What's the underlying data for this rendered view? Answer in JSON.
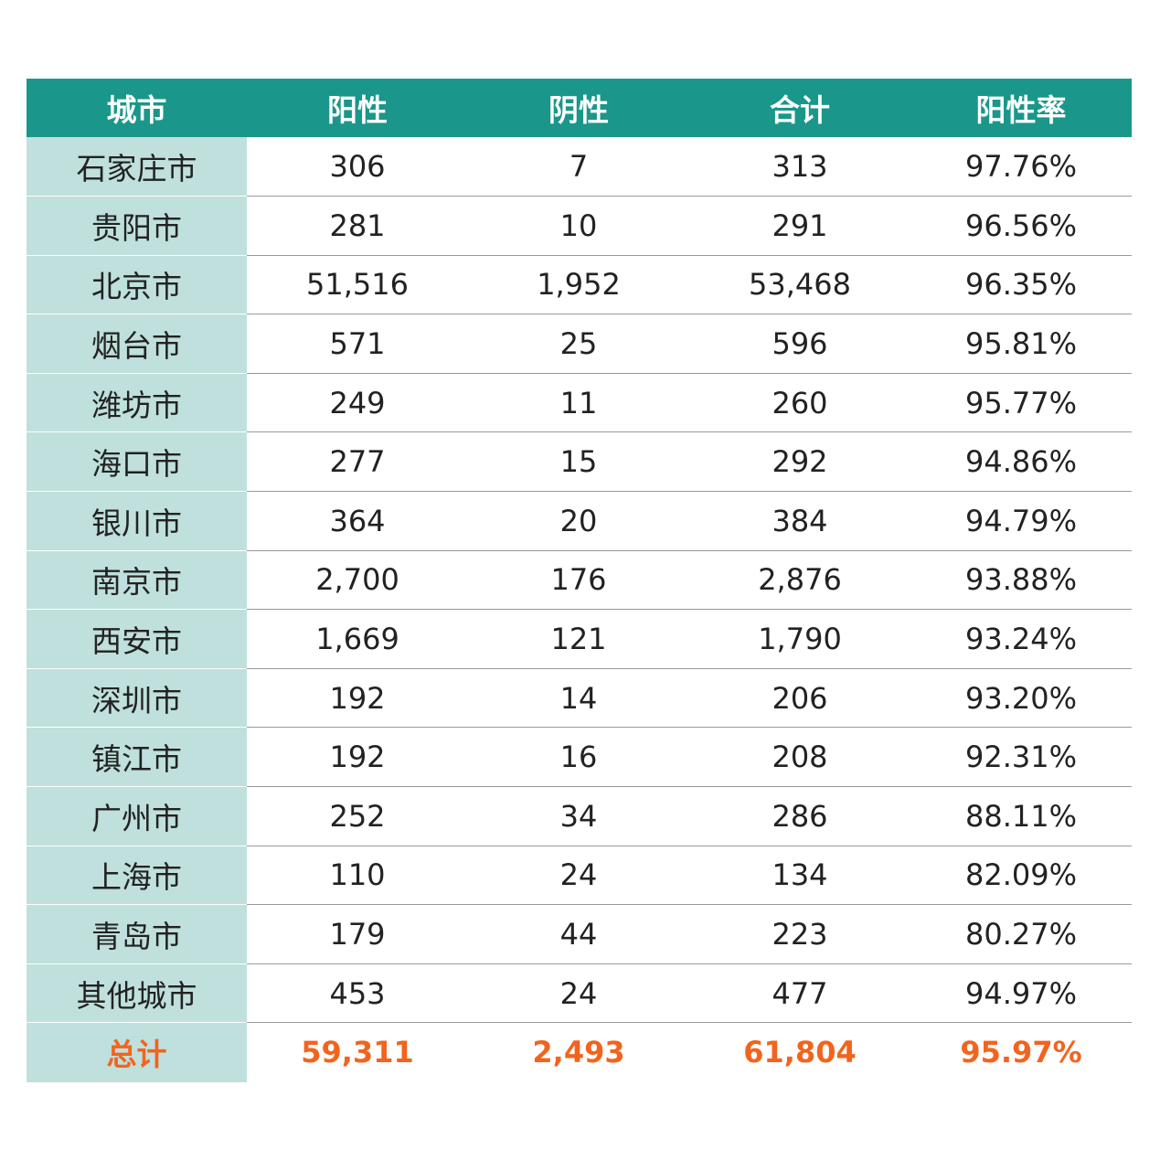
{
  "table": {
    "headers": [
      "城市",
      "阳性",
      "阴性",
      "合计",
      "阳性率"
    ],
    "rows": [
      [
        "石家庄市",
        "306",
        "7",
        "313",
        "97.76%"
      ],
      [
        "贵阳市",
        "281",
        "10",
        "291",
        "96.56%"
      ],
      [
        "北京市",
        "51,516",
        "1,952",
        "53,468",
        "96.35%"
      ],
      [
        "烟台市",
        "571",
        "25",
        "596",
        "95.81%"
      ],
      [
        "潍坊市",
        "249",
        "11",
        "260",
        "95.77%"
      ],
      [
        "海口市",
        "277",
        "15",
        "292",
        "94.86%"
      ],
      [
        "银川市",
        "364",
        "20",
        "384",
        "94.79%"
      ],
      [
        "南京市",
        "2,700",
        "176",
        "2,876",
        "93.88%"
      ],
      [
        "西安市",
        "1,669",
        "121",
        "1,790",
        "93.24%"
      ],
      [
        "深圳市",
        "192",
        "14",
        "206",
        "93.20%"
      ],
      [
        "镇江市",
        "192",
        "16",
        "208",
        "92.31%"
      ],
      [
        "广州市",
        "252",
        "34",
        "286",
        "88.11%"
      ],
      [
        "上海市",
        "110",
        "24",
        "134",
        "82.09%"
      ],
      [
        "青岛市",
        "179",
        "44",
        "223",
        "80.27%"
      ],
      [
        "其他城市",
        "453",
        "24",
        "477",
        "94.97%"
      ]
    ],
    "total": [
      "总计",
      "59,311",
      "2,493",
      "61,804",
      "95.97%"
    ]
  },
  "colors": {
    "header_bg": "#1a978a",
    "city_bg": "#bfe0dc",
    "total_text": "#f2641e"
  }
}
